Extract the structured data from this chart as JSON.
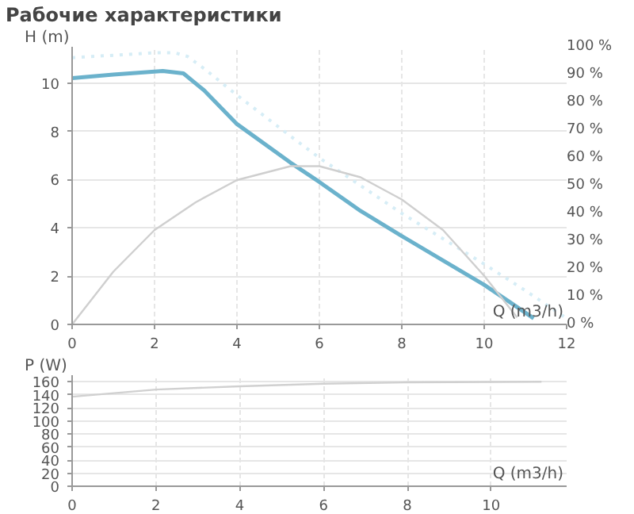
{
  "chart_data": [
    {
      "type": "line",
      "title": "Рабочие характеристики",
      "xlabel": "Q (m3/h)",
      "ylabel": "H (m)",
      "xlim": [
        0,
        12
      ],
      "xticks": [
        0,
        2,
        4,
        6,
        8,
        10,
        12
      ],
      "ylim": [
        0,
        11.5
      ],
      "yticks": [
        0,
        2,
        4,
        6,
        8,
        10
      ],
      "y2lim": [
        0,
        100
      ],
      "y2ticks": [
        {
          "value": 0,
          "label": "0 %"
        },
        {
          "value": 10,
          "label": "10 %"
        },
        {
          "value": 20,
          "label": "20 %"
        },
        {
          "value": 30,
          "label": "30 %"
        },
        {
          "value": 40,
          "label": "40 %"
        },
        {
          "value": 50,
          "label": "50 %"
        },
        {
          "value": 60,
          "label": "60 %"
        },
        {
          "value": 70,
          "label": "70 %"
        },
        {
          "value": 80,
          "label": "80 %"
        },
        {
          "value": 90,
          "label": "90 %"
        },
        {
          "value": 100,
          "label": "100 %"
        }
      ],
      "grid": true,
      "series": [
        {
          "color": "#d6edf6",
          "line_style": "dotted",
          "x": [
            0,
            1,
            2,
            2.5,
            2.8,
            3.2,
            4,
            5.3,
            6,
            7,
            8,
            9,
            10,
            11,
            12
          ],
          "values": [
            11.05,
            11.15,
            11.25,
            11.25,
            11.1,
            10.6,
            9.5,
            7.8,
            6.9,
            5.75,
            4.6,
            3.55,
            2.5,
            1.4,
            0.25
          ]
        },
        {
          "color": "#6bb2cc",
          "line_style": "solid",
          "x": [
            0,
            1,
            2.2,
            2.7,
            3.2,
            4,
            5.3,
            6,
            7,
            8,
            9,
            10,
            10.6,
            11.2
          ],
          "values": [
            10.2,
            10.35,
            10.5,
            10.4,
            9.7,
            8.3,
            6.7,
            5.9,
            4.7,
            3.66,
            2.65,
            1.64,
            0.95,
            0.25
          ]
        },
        {
          "color": "#cfcfcf",
          "line_style": "solid",
          "axis": "y2",
          "x": [
            0,
            1,
            2,
            3,
            4,
            5.3,
            6,
            7,
            8,
            9,
            10,
            10.8
          ],
          "values": [
            0,
            19,
            34,
            44,
            52,
            57,
            57,
            53,
            45,
            34,
            17.5,
            2.5
          ]
        }
      ]
    },
    {
      "type": "line",
      "xlabel": "Q (m3/h)",
      "ylabel": "P (W)",
      "xlim": [
        0,
        11.8
      ],
      "xticks": [
        0,
        2,
        4,
        6,
        8,
        10
      ],
      "ylim": [
        0,
        170
      ],
      "yticks": [
        0,
        20,
        40,
        60,
        80,
        100,
        120,
        140,
        160
      ],
      "grid": true,
      "series": [
        {
          "color": "#d0d0d0",
          "line_style": "solid",
          "x": [
            0,
            2,
            4,
            6,
            8,
            11.2
          ],
          "values": [
            137,
            148,
            153,
            157,
            159,
            160
          ]
        }
      ]
    }
  ]
}
